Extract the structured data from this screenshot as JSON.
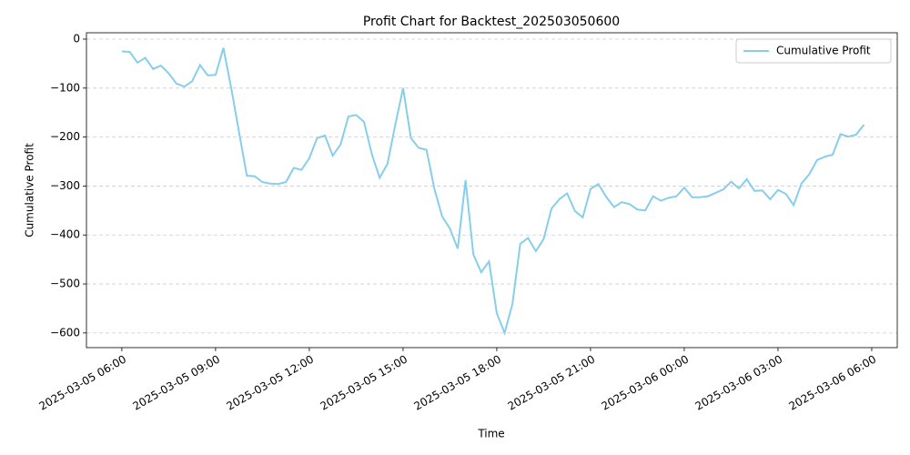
{
  "chart_data": {
    "type": "line",
    "title": "Profit Chart for Backtest_202503050600",
    "x_label": "Time",
    "y_label": "Cumulative Profit",
    "x": [
      "2025-03-05 06:00",
      "2025-03-05 06:15",
      "2025-03-05 06:30",
      "2025-03-05 06:45",
      "2025-03-05 07:00",
      "2025-03-05 07:15",
      "2025-03-05 07:30",
      "2025-03-05 07:45",
      "2025-03-05 08:00",
      "2025-03-05 08:15",
      "2025-03-05 08:30",
      "2025-03-05 08:45",
      "2025-03-05 09:00",
      "2025-03-05 09:15",
      "2025-03-05 09:30",
      "2025-03-05 09:45",
      "2025-03-05 10:00",
      "2025-03-05 10:15",
      "2025-03-05 10:30",
      "2025-03-05 10:45",
      "2025-03-05 11:00",
      "2025-03-05 11:15",
      "2025-03-05 11:30",
      "2025-03-05 11:45",
      "2025-03-05 12:00",
      "2025-03-05 12:15",
      "2025-03-05 12:30",
      "2025-03-05 12:45",
      "2025-03-05 13:00",
      "2025-03-05 13:15",
      "2025-03-05 13:30",
      "2025-03-05 13:45",
      "2025-03-05 14:00",
      "2025-03-05 14:15",
      "2025-03-05 14:30",
      "2025-03-05 14:45",
      "2025-03-05 15:00",
      "2025-03-05 15:15",
      "2025-03-05 15:30",
      "2025-03-05 15:45",
      "2025-03-05 16:00",
      "2025-03-05 16:15",
      "2025-03-05 16:30",
      "2025-03-05 16:45",
      "2025-03-05 17:00",
      "2025-03-05 17:15",
      "2025-03-05 17:30",
      "2025-03-05 17:45",
      "2025-03-05 18:00",
      "2025-03-05 18:15",
      "2025-03-05 18:30",
      "2025-03-05 18:45",
      "2025-03-05 19:00",
      "2025-03-05 19:15",
      "2025-03-05 19:30",
      "2025-03-05 19:45",
      "2025-03-05 20:00",
      "2025-03-05 20:15",
      "2025-03-05 20:30",
      "2025-03-05 20:45",
      "2025-03-05 21:00",
      "2025-03-05 21:15",
      "2025-03-05 21:30",
      "2025-03-05 21:45",
      "2025-03-05 22:00",
      "2025-03-05 22:15",
      "2025-03-05 22:30",
      "2025-03-05 22:45",
      "2025-03-05 23:00",
      "2025-03-05 23:15",
      "2025-03-05 23:30",
      "2025-03-05 23:45",
      "2025-03-06 00:00",
      "2025-03-06 00:15",
      "2025-03-06 00:30",
      "2025-03-06 00:45",
      "2025-03-06 01:00",
      "2025-03-06 01:15",
      "2025-03-06 01:30",
      "2025-03-06 01:45",
      "2025-03-06 02:00",
      "2025-03-06 02:15",
      "2025-03-06 02:30",
      "2025-03-06 02:45",
      "2025-03-06 03:00",
      "2025-03-06 03:15",
      "2025-03-06 03:30",
      "2025-03-06 03:45",
      "2025-03-06 04:00",
      "2025-03-06 04:15",
      "2025-03-06 04:30",
      "2025-03-06 04:45",
      "2025-03-06 05:00",
      "2025-03-06 05:15",
      "2025-03-06 05:30",
      "2025-03-06 05:45"
    ],
    "series": [
      {
        "name": "Cumulative Profit",
        "color": "#87ceeb",
        "values": [
          -25,
          -26,
          -48,
          -38,
          -61,
          -54,
          -70,
          -91,
          -97,
          -86,
          -53,
          -74,
          -73,
          -18,
          -100,
          -190,
          -279,
          -280,
          -292,
          -295,
          -296,
          -292,
          -263,
          -267,
          -243,
          -202,
          -197,
          -238,
          -215,
          -158,
          -155,
          -169,
          -235,
          -283,
          -255,
          -175,
          -100,
          -202,
          -222,
          -226,
          -305,
          -362,
          -387,
          -428,
          -288,
          -440,
          -476,
          -454,
          -560,
          -600,
          -541,
          -418,
          -406,
          -433,
          -408,
          -346,
          -327,
          -315,
          -351,
          -364,
          -306,
          -296,
          -322,
          -343,
          -333,
          -337,
          -348,
          -350,
          -321,
          -330,
          -324,
          -321,
          -303,
          -323,
          -323,
          -321,
          -314,
          -307,
          -291,
          -305,
          -286,
          -310,
          -309,
          -327,
          -308,
          -316,
          -339,
          -295,
          -276,
          -247,
          -240,
          -236,
          -194,
          -199,
          -195,
          -175
        ]
      }
    ],
    "xlim": [
      "2025-03-05 04:52",
      "2025-03-06 06:49"
    ],
    "xticks": [
      "2025-03-05 06:00",
      "2025-03-05 09:00",
      "2025-03-05 12:00",
      "2025-03-05 15:00",
      "2025-03-05 18:00",
      "2025-03-05 21:00",
      "2025-03-06 00:00",
      "2025-03-06 03:00",
      "2025-03-06 06:00"
    ],
    "ylim": [
      -630,
      13
    ],
    "yticks": [
      {
        "value": 0,
        "label": "0"
      },
      {
        "value": -100,
        "label": "−100"
      },
      {
        "value": -200,
        "label": "−200"
      },
      {
        "value": -300,
        "label": "−300"
      },
      {
        "value": -400,
        "label": "−400"
      },
      {
        "value": -500,
        "label": "−500"
      },
      {
        "value": -600,
        "label": "−600"
      }
    ],
    "grid": true,
    "legend": "upper right"
  }
}
